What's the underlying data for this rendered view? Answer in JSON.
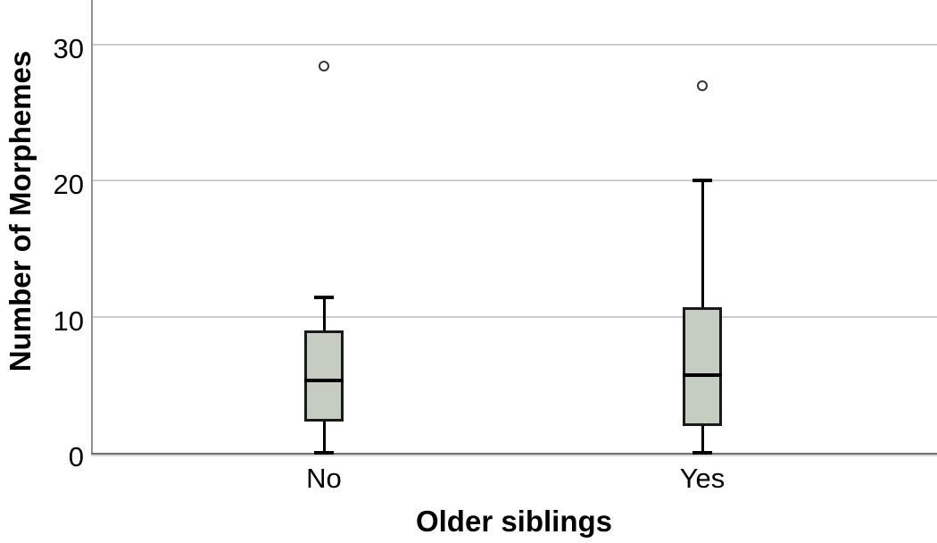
{
  "figure": {
    "background": "#ffffff"
  },
  "chart_data": {
    "type": "boxplot",
    "title": "",
    "xlabel": "Older siblings",
    "ylabel": "Number of Morphemes",
    "categories": [
      "No",
      "Yes"
    ],
    "yticks": [
      0,
      10,
      20,
      30
    ],
    "ylim": [
      0,
      33.3
    ],
    "grid": "horizontal-light-gray",
    "legend": "none",
    "series": [
      {
        "category": "No",
        "whisker_low": 0,
        "q1": 2.3,
        "median": 5.3,
        "q3": 9.0,
        "whisker_high": 11.4,
        "outliers": [
          28.4
        ]
      },
      {
        "category": "Yes",
        "whisker_low": 0,
        "q1": 2.0,
        "median": 5.7,
        "q3": 10.7,
        "whisker_high": 20.0,
        "outliers": [
          27.0
        ]
      }
    ],
    "colors": {
      "box_fill": "#c4cdbf",
      "box_border": "#1a1a1a",
      "median": "#000000",
      "whisker": "#000000",
      "outlier_stroke": "#333333",
      "gridline": "#cdcdcd",
      "axis_line": "#6f6f6f",
      "text": "#000000"
    }
  }
}
